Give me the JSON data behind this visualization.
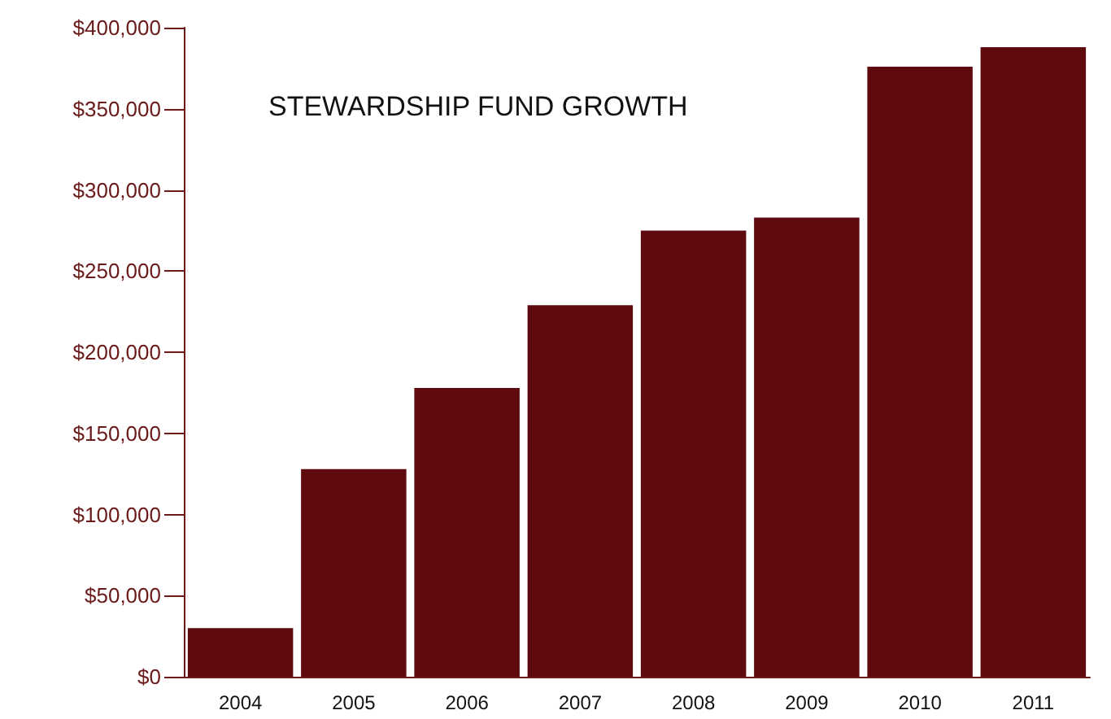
{
  "chart_data": {
    "type": "bar",
    "title": "STEWARDSHIP FUND GROWTH",
    "categories": [
      "2004",
      "2005",
      "2006",
      "2007",
      "2008",
      "2009",
      "2010",
      "2011"
    ],
    "values": [
      30000,
      128000,
      178000,
      229000,
      275000,
      283000,
      376000,
      388000
    ],
    "color": "#5e0a0e",
    "ylim": [
      0,
      400000
    ],
    "yticks": [
      {
        "value": 0,
        "label": "$0"
      },
      {
        "value": 50000,
        "label": "$50,000"
      },
      {
        "value": 100000,
        "label": "$100,000"
      },
      {
        "value": 150000,
        "label": "$150,000"
      },
      {
        "value": 200000,
        "label": "$200,000"
      },
      {
        "value": 250000,
        "label": "$250,000"
      },
      {
        "value": 300000,
        "label": "$300,000"
      },
      {
        "value": 350000,
        "label": "$350,000"
      },
      {
        "value": 400000,
        "label": "$400,000"
      }
    ],
    "grid": false
  }
}
